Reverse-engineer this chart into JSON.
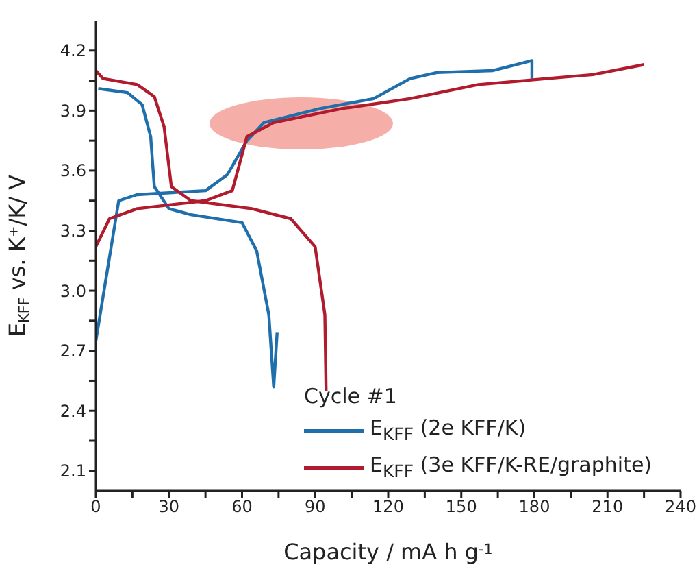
{
  "chart_data": {
    "type": "line",
    "xlabel": "Capacity / mA h g$^{-1}$",
    "ylabel": "E$_{KFF}$ vs. K⁺/K/ V",
    "legend_title": "Cycle #1",
    "legend": "bottom right",
    "marker": "none",
    "line_style": "solid",
    "grid": false,
    "xlim": [
      0,
      240
    ],
    "xticks": [
      0,
      {
        "value": 15,
        "label": null
      },
      30,
      {
        "value": 45,
        "label": null
      },
      60,
      {
        "value": 75,
        "label": null
      },
      90,
      {
        "value": 105,
        "label": null
      },
      120,
      {
        "value": 135,
        "label": null
      },
      150,
      {
        "value": 165,
        "label": null
      },
      180,
      {
        "value": 195,
        "label": null
      },
      210,
      {
        "value": 225,
        "label": null
      },
      240
    ],
    "ylim": [
      2.0,
      4.35
    ],
    "yticks": [
      2.1,
      {
        "value": 2.25,
        "label": null
      },
      2.4,
      {
        "value": 2.55,
        "label": null
      },
      2.7,
      {
        "value": 2.85,
        "label": null
      },
      {
        "value": 3.0,
        "label": "3.0"
      },
      {
        "value": 3.15,
        "label": null
      },
      3.3,
      {
        "value": 3.45,
        "label": null
      },
      3.6,
      {
        "value": 3.75,
        "label": null
      },
      3.9,
      {
        "value": 4.05,
        "label": null
      },
      4.2
    ],
    "series": [
      {
        "name": "E$_{KFF}$ (2e KFF/K)",
        "color": "#1f6fad",
        "x": [
          0,
          9.4,
          16.9,
          45,
          54,
          62,
          69,
          92,
          114,
          129,
          140,
          163,
          179,
          179,
          90,
          1,
          13,
          19,
          22.5,
          24,
          30,
          39,
          60,
          66,
          71,
          73,
          74.4
        ],
        "values": [
          2.75,
          3.45,
          3.48,
          3.5,
          3.58,
          3.75,
          3.84,
          3.91,
          3.96,
          4.06,
          4.09,
          4.1,
          4.15,
          4.06,
          null,
          4.01,
          3.99,
          3.93,
          3.77,
          3.52,
          3.41,
          3.38,
          3.34,
          3.2,
          2.88,
          2.52,
          2.79
        ]
      },
      {
        "name": "E$_{KFF}$ (3e KFF/K-RE/graphite)",
        "color": "#b01c2e",
        "x": [
          0,
          5.6,
          17,
          45,
          56,
          62,
          73,
          101,
          129,
          157,
          185,
          204,
          225,
          100,
          0,
          3,
          17,
          24,
          28,
          31,
          39,
          64,
          80,
          90,
          94,
          94.5
        ],
        "values": [
          3.22,
          3.36,
          3.41,
          3.45,
          3.5,
          3.77,
          3.84,
          3.91,
          3.96,
          4.03,
          4.06,
          4.08,
          4.13,
          null,
          4.1,
          4.06,
          4.03,
          3.97,
          3.82,
          3.52,
          3.45,
          3.41,
          3.36,
          3.22,
          2.88,
          2.5
        ]
      }
    ]
  }
}
